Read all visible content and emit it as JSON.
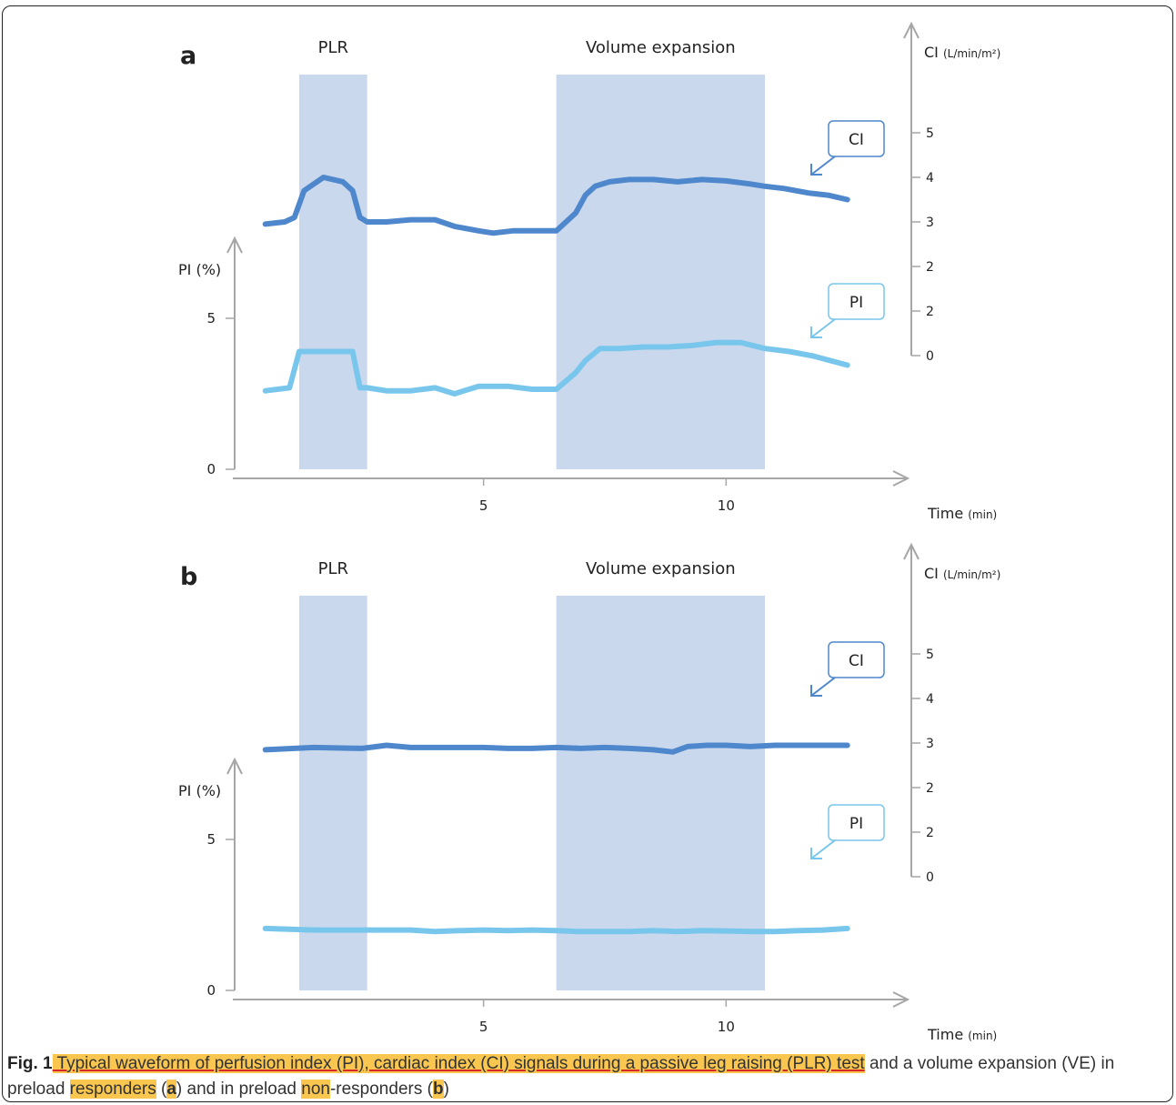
{
  "colors": {
    "shade": "#c9d8ec",
    "ci": "#4e87cc",
    "pi": "#79c6ec",
    "axis": "#a6a6a6",
    "highlight": "#f9c74f",
    "underline": "#d62828"
  },
  "caption": {
    "fig_label": "Fig. 1",
    "part1": " Typical waveform of perfusion index (PI), cardiac index (CI) signals during a passive leg raising (PLR) test",
    "part2": " and a volume expansion (VE) in preload ",
    "responders": "responders",
    "open_a": " (",
    "a": "a",
    "mid": ") and in preload ",
    "non": "non",
    "rest": "-responders (",
    "b": "b",
    "close": ")"
  },
  "chart_data": [
    {
      "panel": "a",
      "type": "line",
      "band_labels": [
        "PLR",
        "Volume expansion"
      ],
      "bands": [
        {
          "from": 1.2,
          "to": 2.6
        },
        {
          "from": 6.5,
          "to": 10.8
        }
      ],
      "xlabel": "Time",
      "xunit": "(min)",
      "xticks": [
        "5",
        "10"
      ],
      "xlim": [
        0,
        13.5
      ],
      "left_axis": {
        "label": "PI (%)",
        "ticks": [
          "0",
          "5"
        ],
        "ylim": [
          0,
          7.5
        ]
      },
      "right_axis": {
        "label": "CI",
        "unit": "(L/min/m²)",
        "ticks": [
          "0",
          "2",
          "2",
          "3",
          "4",
          "5"
        ],
        "ylim": [
          0,
          6.2
        ]
      },
      "series": [
        {
          "name": "CI",
          "axis": "right",
          "x": [
            0.5,
            0.9,
            1.1,
            1.3,
            1.5,
            1.7,
            1.9,
            2.1,
            2.3,
            2.45,
            2.6,
            3.0,
            3.5,
            4.0,
            4.4,
            4.9,
            5.2,
            5.6,
            6.0,
            6.5,
            6.9,
            7.1,
            7.3,
            7.6,
            8.0,
            8.5,
            9.0,
            9.5,
            10.0,
            10.5,
            10.8,
            11.2,
            11.7,
            12.1,
            12.5
          ],
          "y": [
            2.95,
            3.0,
            3.1,
            3.7,
            3.85,
            4.0,
            3.95,
            3.9,
            3.7,
            3.1,
            3.0,
            3.0,
            3.05,
            3.05,
            2.9,
            2.8,
            2.75,
            2.8,
            2.8,
            2.8,
            3.2,
            3.6,
            3.8,
            3.9,
            3.95,
            3.95,
            3.9,
            3.95,
            3.92,
            3.85,
            3.8,
            3.75,
            3.65,
            3.6,
            3.5
          ]
        },
        {
          "name": "PI",
          "axis": "left",
          "x": [
            0.5,
            1.0,
            1.2,
            1.4,
            1.7,
            2.0,
            2.3,
            2.45,
            2.6,
            3.0,
            3.5,
            4.0,
            4.4,
            4.9,
            5.5,
            6.0,
            6.5,
            6.9,
            7.1,
            7.4,
            7.8,
            8.3,
            8.8,
            9.3,
            9.8,
            10.3,
            10.8,
            11.3,
            11.8,
            12.5
          ],
          "y": [
            2.6,
            2.7,
            3.9,
            3.9,
            3.9,
            3.9,
            3.9,
            2.7,
            2.7,
            2.6,
            2.6,
            2.7,
            2.5,
            2.75,
            2.75,
            2.65,
            2.65,
            3.2,
            3.6,
            4.0,
            4.0,
            4.05,
            4.05,
            4.1,
            4.2,
            4.2,
            4.0,
            3.9,
            3.75,
            3.45
          ]
        }
      ]
    },
    {
      "panel": "b",
      "type": "line",
      "band_labels": [
        "PLR",
        "Volume expansion"
      ],
      "bands": [
        {
          "from": 1.2,
          "to": 2.6
        },
        {
          "from": 6.5,
          "to": 10.8
        }
      ],
      "xlabel": "Time",
      "xunit": "(min)",
      "xticks": [
        "5",
        "10"
      ],
      "xlim": [
        0,
        13.5
      ],
      "left_axis": {
        "label": "PI (%)",
        "ticks": [
          "0",
          "5"
        ],
        "ylim": [
          0,
          7.5
        ]
      },
      "right_axis": {
        "label": "CI",
        "unit": "(L/min/m²)",
        "ticks": [
          "0",
          "2",
          "2",
          "3",
          "4",
          "5"
        ],
        "ylim": [
          0,
          6.2
        ]
      },
      "series": [
        {
          "name": "CI",
          "axis": "right",
          "x": [
            0.5,
            1.5,
            2.5,
            3.0,
            3.5,
            4.0,
            4.5,
            5.0,
            5.5,
            6.0,
            6.5,
            7.0,
            7.5,
            8.0,
            8.5,
            8.9,
            9.2,
            9.6,
            10.0,
            10.5,
            11.0,
            11.5,
            12.0,
            12.5
          ],
          "y": [
            2.85,
            2.9,
            2.88,
            2.95,
            2.9,
            2.9,
            2.9,
            2.9,
            2.88,
            2.88,
            2.9,
            2.88,
            2.9,
            2.88,
            2.85,
            2.8,
            2.92,
            2.95,
            2.95,
            2.92,
            2.95,
            2.95,
            2.95,
            2.95
          ]
        },
        {
          "name": "PI",
          "axis": "left",
          "x": [
            0.5,
            1.5,
            2.5,
            3.0,
            3.5,
            4.0,
            4.5,
            5.0,
            5.5,
            6.0,
            6.5,
            7.0,
            7.5,
            8.0,
            8.5,
            9.0,
            9.5,
            10.0,
            10.5,
            11.0,
            11.5,
            12.0,
            12.5
          ],
          "y": [
            2.05,
            2.0,
            2.0,
            2.0,
            2.0,
            1.95,
            1.98,
            2.0,
            1.98,
            2.0,
            1.98,
            1.95,
            1.95,
            1.95,
            1.98,
            1.95,
            1.98,
            1.97,
            1.95,
            1.95,
            1.98,
            2.0,
            2.05
          ]
        }
      ]
    }
  ]
}
